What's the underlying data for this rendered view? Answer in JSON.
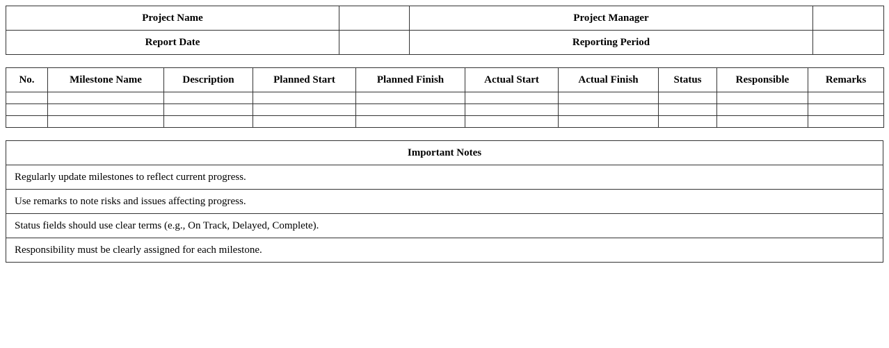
{
  "header": {
    "project_name_label": "Project Name",
    "project_manager_label": "Project Manager",
    "report_date_label": "Report Date",
    "reporting_period_label": "Reporting Period"
  },
  "milestones": {
    "columns": [
      "No.",
      "Milestone Name",
      "Description",
      "Planned Start",
      "Planned Finish",
      "Actual Start",
      "Actual Finish",
      "Status",
      "Responsible",
      "Remarks"
    ]
  },
  "notes": {
    "title": "Important Notes",
    "items": [
      "Regularly update milestones to reflect current progress.",
      "Use remarks to note risks and issues affecting progress.",
      "Status fields should use clear terms (e.g., On Track, Delayed, Complete).",
      "Responsibility must be clearly assigned for each milestone."
    ]
  }
}
